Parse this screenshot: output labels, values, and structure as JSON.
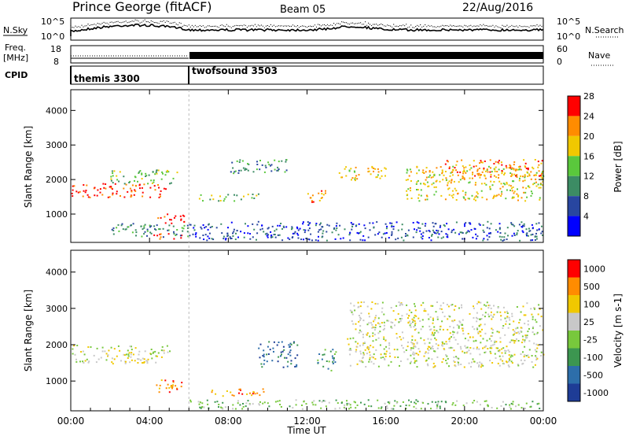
{
  "header": {
    "station": "Prince George (fitACF)",
    "beam": "Beam 05",
    "date": "22/Aug/2016"
  },
  "noise_panel": {
    "left_label": "N.Sky",
    "right_label": "N.Search",
    "tick_top": "10^5",
    "tick_bottom": "10^0"
  },
  "freq_panel": {
    "left_label": "Freq.",
    "left_unit": "[MHz]",
    "left_ticks": [
      "18",
      "8"
    ],
    "right_label": "Nave",
    "right_ticks": [
      "60",
      "0"
    ]
  },
  "cpid_panel": {
    "label": "CPID",
    "modes": [
      {
        "name": "themis 3300",
        "start_hour": 0
      },
      {
        "name": "twofsound 3503",
        "start_hour": 6
      }
    ]
  },
  "chart_data": [
    {
      "type": "heatmap",
      "title": "",
      "xlabel": "",
      "ylabel": "Slant Range [km]",
      "xlim": [
        0,
        24
      ],
      "ylim": [
        180,
        4600
      ],
      "yticks": [
        "1000",
        "2000",
        "3000",
        "4000"
      ],
      "colorbar_label": "Power [dB]",
      "colorbar_ticks": [
        "4",
        "8",
        "12",
        "16",
        "20",
        "24",
        "28"
      ],
      "colors": [
        "#0000ff",
        "#2846a0",
        "#3c8c64",
        "#5ac83c",
        "#f0c800",
        "#ff8c00",
        "#ff0000"
      ],
      "clusters": [
        {
          "x": [
            0.0,
            4.8
          ],
          "y": [
            1500,
            1900
          ],
          "level": 6
        },
        {
          "x": [
            2.0,
            5.5
          ],
          "y": [
            1900,
            2300
          ],
          "level": 3
        },
        {
          "x": [
            4.2,
            5.8
          ],
          "y": [
            300,
            450
          ],
          "level": 6
        },
        {
          "x": [
            4.4,
            5.8
          ],
          "y": [
            750,
            1050
          ],
          "level": 6
        },
        {
          "x": [
            2.0,
            6.0
          ],
          "y": [
            350,
            750
          ],
          "level": 2
        },
        {
          "x": [
            6.5,
            9.5
          ],
          "y": [
            1400,
            1600
          ],
          "level": 3
        },
        {
          "x": [
            8.0,
            11.0
          ],
          "y": [
            2200,
            2600
          ],
          "level": 2
        },
        {
          "x": [
            12.0,
            13.0
          ],
          "y": [
            1300,
            1700
          ],
          "level": 5
        },
        {
          "x": [
            13.5,
            16.0
          ],
          "y": [
            2000,
            2400
          ],
          "level": 4
        },
        {
          "x": [
            17.0,
            24.0
          ],
          "y": [
            1400,
            2400
          ],
          "level": 4
        },
        {
          "x": [
            19.0,
            24.0
          ],
          "y": [
            2100,
            2600
          ],
          "level": 5
        },
        {
          "x": [
            6.0,
            24.0
          ],
          "y": [
            250,
            800
          ],
          "level": 1
        }
      ]
    },
    {
      "type": "heatmap",
      "title": "",
      "xlabel": "Time UT",
      "ylabel": "Slant Range [km]",
      "xlim": [
        0,
        24
      ],
      "ylim": [
        180,
        4600
      ],
      "yticks": [
        "1000",
        "2000",
        "3000",
        "4000"
      ],
      "xticks": [
        "00:00",
        "04:00",
        "08:00",
        "12:00",
        "16:00",
        "20:00",
        "00:00"
      ],
      "colorbar_label": "Velocity [m s-1]",
      "colorbar_ticks": [
        "1000",
        "500",
        "100",
        "25",
        "-25",
        "-100",
        "-500",
        "-1000"
      ],
      "colors": [
        "#1e3c96",
        "#2d6eaa",
        "#3c9650",
        "#78c83c",
        "#c8c8c8",
        "#f0c800",
        "#ff8c00",
        "#ff0000"
      ],
      "clusters": [
        {
          "x": [
            0.0,
            5.0
          ],
          "y": [
            1500,
            2000
          ],
          "level": 4
        },
        {
          "x": [
            4.2,
            5.8
          ],
          "y": [
            700,
            1050
          ],
          "level": 6
        },
        {
          "x": [
            7.0,
            10.0
          ],
          "y": [
            600,
            800
          ],
          "level": 6
        },
        {
          "x": [
            9.5,
            11.5
          ],
          "y": [
            1400,
            2100
          ],
          "level": 1
        },
        {
          "x": [
            12.5,
            13.5
          ],
          "y": [
            1300,
            1900
          ],
          "level": 2
        },
        {
          "x": [
            14.0,
            24.0
          ],
          "y": [
            1400,
            3200
          ],
          "level": 4
        },
        {
          "x": [
            6.0,
            24.0
          ],
          "y": [
            250,
            500
          ],
          "level": 3
        }
      ]
    }
  ]
}
